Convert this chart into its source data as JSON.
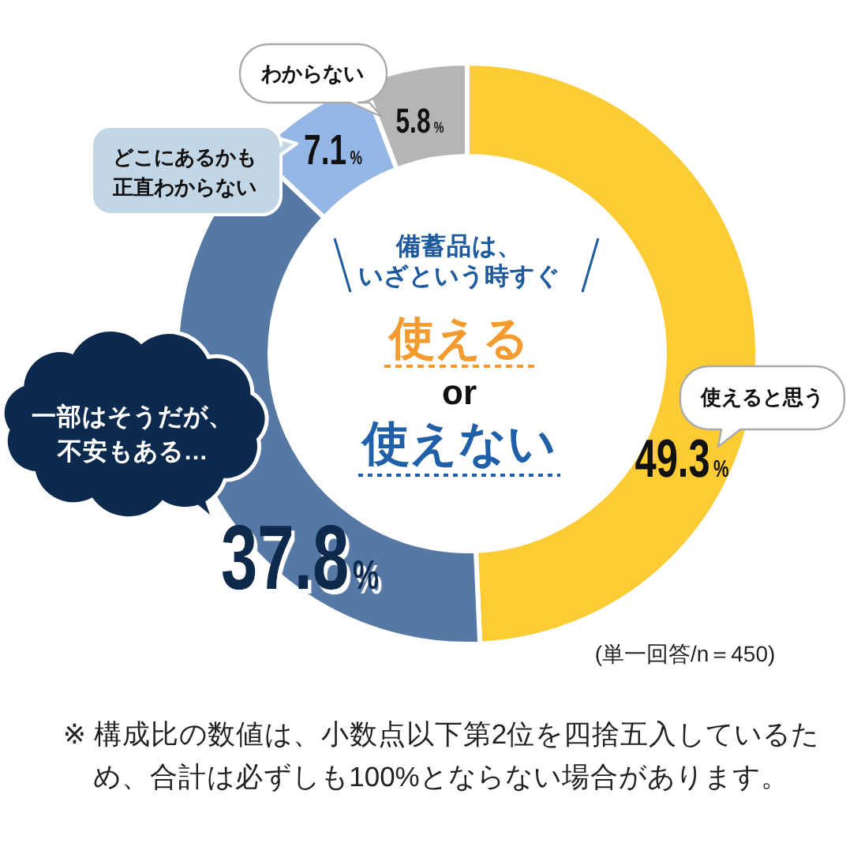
{
  "chart_data": {
    "type": "donut",
    "title": "備蓄品は、いざという時すぐ",
    "subtitle": "使える\nor\n使えない",
    "categories": [
      "使えると思う",
      "一部はそうだが、不安もある…",
      "どこにあるかも正直わからない",
      "わからない"
    ],
    "values": [
      49.3,
      37.8,
      7.1,
      5.8
    ],
    "value_labels": [
      "49.3%",
      "37.8%",
      "7.1%",
      "5.8%"
    ],
    "colors": [
      "#fdcb33",
      "#5678a4",
      "#94b7e6",
      "#b5b5b5"
    ],
    "annotations": [
      "(単一回答/n＝450)",
      "※ 構成比の数値は、小数点以下第2位を四捨五入しているため、合計は必ずしも100%とならない場合があります。"
    ]
  }
}
